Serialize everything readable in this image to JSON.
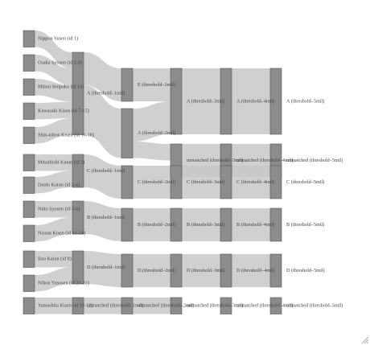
{
  "colors": {
    "node_fill": "#8c8c8c",
    "node_stroke": "#555555",
    "link_fill": "#c8c8c8",
    "label_text": "#444444",
    "background": "#ffffff"
  },
  "chart_data": {
    "type": "sankey",
    "title": "",
    "columns": [
      [
        "Nippon Yusen (id 1)",
        "Osaka Syosen (id 2-9)",
        "Mitsui Senpaku (id 10)",
        "Kawasaki Kisen (id 7-15)",
        "Shin-nihon Kisen (id 16-18)",
        "Mitsubishi Kaiun (id 2)",
        "Daido Kaiun (id 3-4)",
        "Nitto Syosen (id 5-6)",
        "Nissan Kisen (id 11-24)",
        "Iino Kaiun (id 8)",
        "Nihon Yusosen (id 21-23)",
        "Yamashita Kisen (id 19-12)"
      ],
      [
        "A (threshold–1mil)",
        "C (threshold–1mil)",
        "B (threshold–1mil)",
        "D (threshold–1mil)",
        "unmatched (threshold–1mil)"
      ],
      [
        "E (threshold–2mil)",
        "A (threshold–2mil)",
        "C (threshold–2mil)",
        "B (threshold–2mil)",
        "D (threshold–2mil)",
        "unmatched (threshold–2mil)"
      ],
      [
        "A (threshold–3mil)",
        "unmatched (threshold–3mil)",
        "C (threshold–3mil)",
        "B (threshold–3mil)",
        "D (threshold–3mil)",
        "unmatched (threshold–3mil)"
      ],
      [
        "A (threshold–4mil)",
        "unmatched (threshold–4mil)",
        "C (threshold–4mil)",
        "B (threshold–4mil)",
        "D (threshold–4mil)",
        "unmatched (threshold–4mil)"
      ],
      [
        "A (threshold–5mil)",
        "unmatched (threshold–5mil)",
        "C (threshold–5mil)",
        "B (threshold–5mil)",
        "D (threshold–5mil)",
        "unmatched (threshold–5mil)"
      ]
    ],
    "links": [
      {
        "from": "Nippon Yusen (id 1)",
        "to": "A (threshold–1mil)",
        "value": 1
      },
      {
        "from": "Osaka Syosen (id 2-9)",
        "to": "A (threshold–1mil)",
        "value": 1
      },
      {
        "from": "Mitsui Senpaku (id 10)",
        "to": "A (threshold–1mil)",
        "value": 1
      },
      {
        "from": "Kawasaki Kisen (id 7-15)",
        "to": "A (threshold–1mil)",
        "value": 1
      },
      {
        "from": "Shin-nihon Kisen (id 16-18)",
        "to": "A (threshold–1mil)",
        "value": 1
      },
      {
        "from": "Mitsubishi Kaiun (id 2)",
        "to": "C (threshold–1mil)",
        "value": 1
      },
      {
        "from": "Daido Kaiun (id 3-4)",
        "to": "C (threshold–1mil)",
        "value": 1
      },
      {
        "from": "Nitto Syosen (id 5-6)",
        "to": "B (threshold–1mil)",
        "value": 1
      },
      {
        "from": "Nissan Kisen (id 11-24)",
        "to": "B (threshold–1mil)",
        "value": 1
      },
      {
        "from": "Iino Kaiun (id 8)",
        "to": "D (threshold–1mil)",
        "value": 1
      },
      {
        "from": "Nihon Yusosen (id 21-23)",
        "to": "D (threshold–1mil)",
        "value": 1
      },
      {
        "from": "Yamashita Kisen (id 19-12)",
        "to": "unmatched (threshold–1mil)",
        "value": 1
      },
      {
        "from": "A (threshold–1mil)",
        "to": "E (threshold–2mil)",
        "value": 2
      },
      {
        "from": "A (threshold–1mil)",
        "to": "A (threshold–2mil)",
        "value": 3
      },
      {
        "from": "C (threshold–1mil)",
        "to": "C (threshold–2mil)",
        "value": 2
      },
      {
        "from": "B (threshold–1mil)",
        "to": "B (threshold–2mil)",
        "value": 2
      },
      {
        "from": "D (threshold–1mil)",
        "to": "D (threshold–2mil)",
        "value": 2
      },
      {
        "from": "unmatched (threshold–1mil)",
        "to": "unmatched (threshold–2mil)",
        "value": 1
      },
      {
        "from": "E (threshold–2mil)",
        "to": "A (threshold–3mil)",
        "value": 2
      },
      {
        "from": "A (threshold–2mil)",
        "to": "A (threshold–3mil)",
        "value": 2
      },
      {
        "from": "A (threshold–2mil)",
        "to": "unmatched (threshold–3mil)",
        "value": 1
      },
      {
        "from": "C (threshold–2mil)",
        "to": "C (threshold–3mil)",
        "value": 2
      },
      {
        "from": "B (threshold–2mil)",
        "to": "B (threshold–3mil)",
        "value": 2
      },
      {
        "from": "D (threshold–2mil)",
        "to": "D (threshold–3mil)",
        "value": 2
      },
      {
        "from": "unmatched (threshold–2mil)",
        "to": "unmatched (threshold–3mil)",
        "value": 1
      },
      {
        "from": "A (threshold–3mil)",
        "to": "A (threshold–4mil)",
        "value": 4
      },
      {
        "from": "unmatched (threshold–3mil)",
        "to": "unmatched (threshold–4mil)",
        "value": 1
      },
      {
        "from": "C (threshold–3mil)",
        "to": "C (threshold–4mil)",
        "value": 2
      },
      {
        "from": "B (threshold–3mil)",
        "to": "B (threshold–4mil)",
        "value": 2
      },
      {
        "from": "D (threshold–3mil)",
        "to": "D (threshold–4mil)",
        "value": 2
      },
      {
        "from": "unmatched (threshold–3mil)",
        "to": "unmatched (threshold–4mil)",
        "value": 1
      },
      {
        "from": "A (threshold–4mil)",
        "to": "A (threshold–5mil)",
        "value": 4
      },
      {
        "from": "unmatched (threshold–4mil)",
        "to": "unmatched (threshold–5mil)",
        "value": 1
      },
      {
        "from": "C (threshold–4mil)",
        "to": "C (threshold–5mil)",
        "value": 2
      },
      {
        "from": "B (threshold–4mil)",
        "to": "B (threshold–5mil)",
        "value": 2
      },
      {
        "from": "D (threshold–4mil)",
        "to": "D (threshold–5mil)",
        "value": 2
      },
      {
        "from": "unmatched (threshold–4mil)",
        "to": "unmatched (threshold–5mil)",
        "value": 1
      }
    ]
  }
}
